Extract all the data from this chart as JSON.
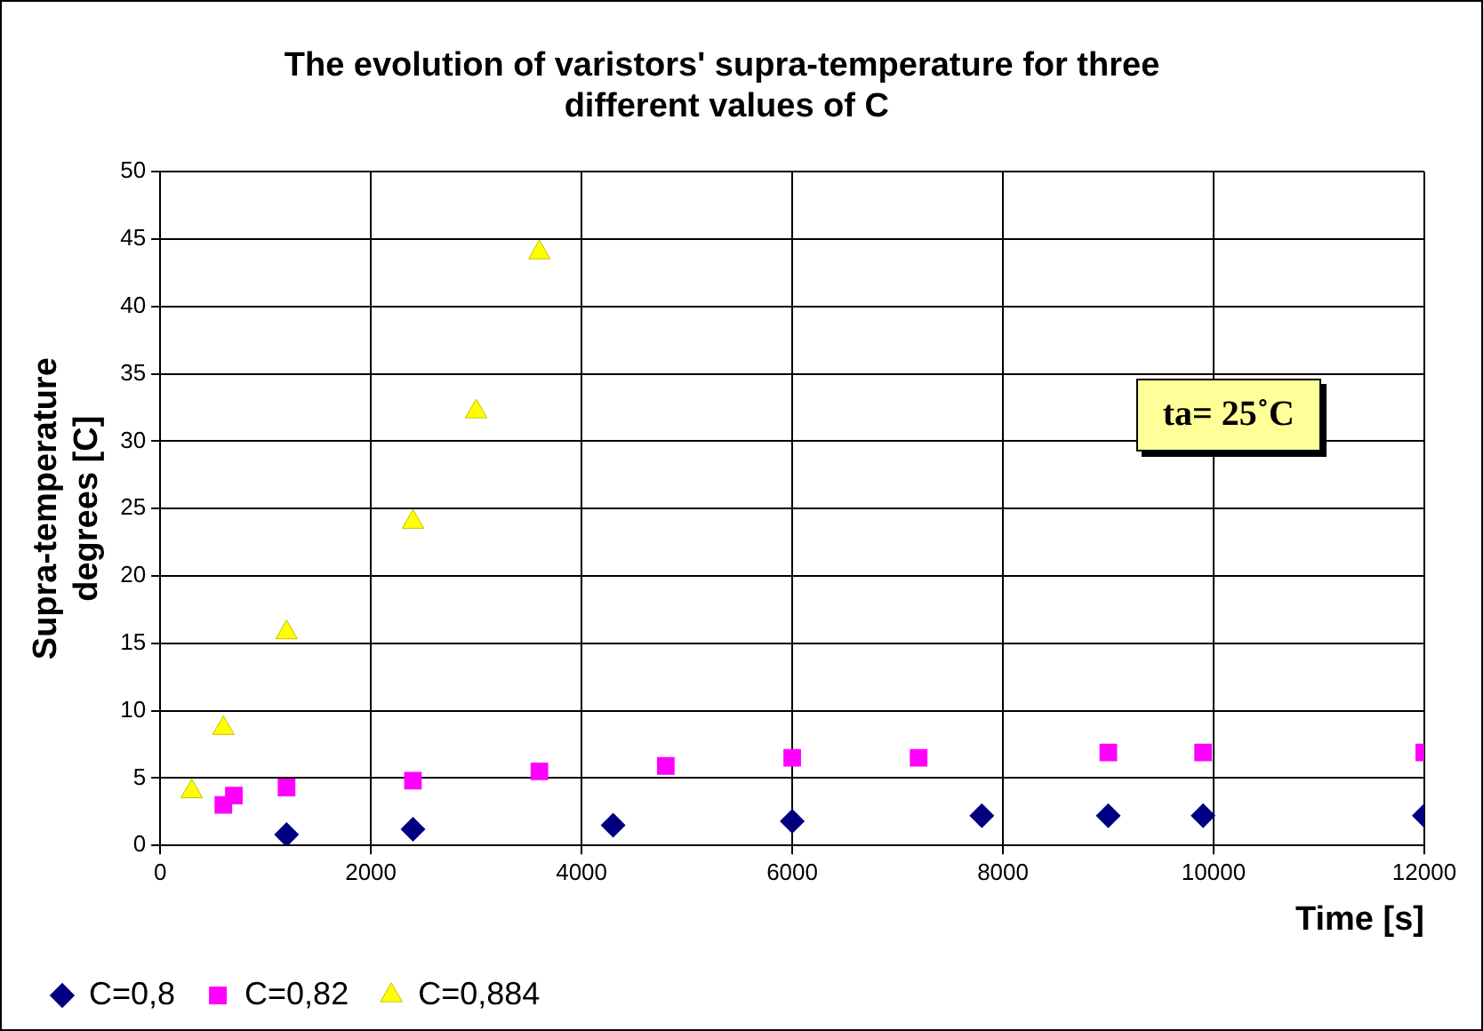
{
  "chart_data": {
    "type": "scatter",
    "title": "The evolution of varistors' supra-temperature for three different values of C",
    "xlabel": "Time [s]",
    "ylabel": "Supra-temperature degrees [C]",
    "xlim": [
      0,
      12000
    ],
    "xticks": [
      0,
      2000,
      4000,
      6000,
      8000,
      10000,
      12000
    ],
    "ylim": [
      0,
      50
    ],
    "yticks": [
      0,
      5,
      10,
      15,
      20,
      25,
      30,
      35,
      40,
      45,
      50
    ],
    "grid": true,
    "legend": "bottom left",
    "annotations": [
      "ta= 25˚C"
    ],
    "series": [
      {
        "name": "C=0,8",
        "color": "#000080",
        "marker": "diamond",
        "x": [
          1200,
          2400,
          4300,
          6000,
          7800,
          9000,
          9900,
          12000
        ],
        "values": [
          0.8,
          1.2,
          1.5,
          1.8,
          2.2,
          2.2,
          2.2,
          2.2
        ]
      },
      {
        "name": "C=0,82",
        "color": "#ff00ff",
        "marker": "square",
        "x": [
          600,
          700,
          1200,
          2400,
          3600,
          4800,
          6000,
          7200,
          9000,
          9900,
          12000
        ],
        "values": [
          3,
          3.7,
          4.3,
          4.8,
          5.5,
          5.9,
          6.5,
          6.5,
          6.9,
          6.9,
          6.9
        ]
      },
      {
        "name": "C=0,884",
        "color": "#ffff00",
        "marker": "triangle",
        "x": [
          300,
          600,
          1200,
          2400,
          3000,
          3600
        ],
        "values": [
          4,
          8.7,
          15.8,
          24,
          32.2,
          44
        ]
      }
    ]
  }
}
